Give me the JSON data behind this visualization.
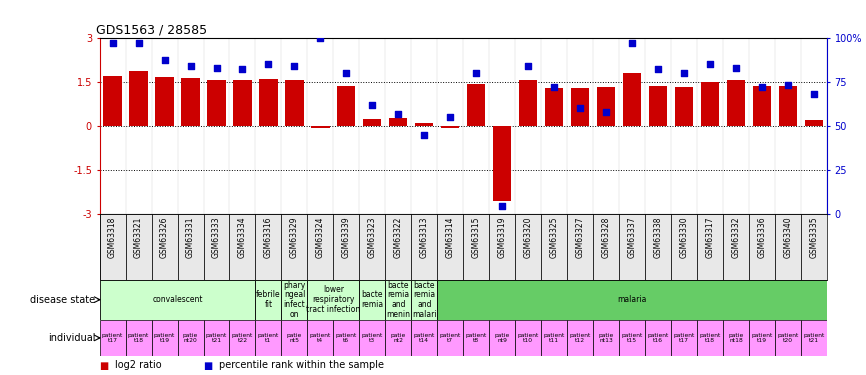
{
  "title": "GDS1563 / 28585",
  "samples": [
    "GSM63318",
    "GSM63321",
    "GSM63326",
    "GSM63331",
    "GSM63333",
    "GSM63334",
    "GSM63316",
    "GSM63329",
    "GSM63324",
    "GSM63339",
    "GSM63323",
    "GSM63322",
    "GSM63313",
    "GSM63314",
    "GSM63315",
    "GSM63319",
    "GSM63320",
    "GSM63325",
    "GSM63327",
    "GSM63328",
    "GSM63337",
    "GSM63338",
    "GSM63330",
    "GSM63317",
    "GSM63332",
    "GSM63336",
    "GSM63340",
    "GSM63335"
  ],
  "log2_ratio": [
    1.7,
    1.85,
    1.65,
    1.62,
    1.57,
    1.55,
    1.6,
    1.57,
    -0.08,
    1.35,
    0.22,
    0.27,
    0.1,
    -0.07,
    1.42,
    -2.55,
    1.55,
    1.28,
    1.3,
    1.32,
    1.78,
    1.35,
    1.32,
    1.48,
    1.55,
    1.35,
    1.35,
    0.2
  ],
  "percentile": [
    97,
    97,
    87,
    84,
    83,
    82,
    85,
    84,
    100,
    80,
    62,
    57,
    45,
    55,
    80,
    5,
    84,
    72,
    60,
    58,
    97,
    82,
    80,
    85,
    83,
    72,
    73,
    68
  ],
  "ylim": [
    -3,
    3
  ],
  "y2lim": [
    0,
    100
  ],
  "yticks": [
    -3,
    -1.5,
    0,
    1.5,
    3
  ],
  "y2ticks": [
    0,
    25,
    50,
    75,
    100
  ],
  "bar_color": "#CC0000",
  "dot_color": "#0000CC",
  "disease_state_groups": [
    {
      "label": "convalescent",
      "start": 0,
      "end": 6,
      "color": "#CCFFCC"
    },
    {
      "label": "febrile\nfit",
      "start": 6,
      "end": 7,
      "color": "#CCFFCC"
    },
    {
      "label": "phary\nngeal\ninfect\non",
      "start": 7,
      "end": 8,
      "color": "#CCFFCC"
    },
    {
      "label": "lower\nrespiratory\ntract infection",
      "start": 8,
      "end": 10,
      "color": "#CCFFCC"
    },
    {
      "label": "bacte\nremia",
      "start": 10,
      "end": 11,
      "color": "#CCFFCC"
    },
    {
      "label": "bacte\nremia\nand\nmenin",
      "start": 11,
      "end": 12,
      "color": "#CCFFCC"
    },
    {
      "label": "bacte\nremia\nand\nmalari",
      "start": 12,
      "end": 13,
      "color": "#CCFFCC"
    },
    {
      "label": "malaria",
      "start": 13,
      "end": 28,
      "color": "#66CC66"
    }
  ],
  "indiv_labels": [
    "patient\nt17",
    "patient\nt18",
    "patient\nt19",
    "patie\nnt20",
    "patient\nt21",
    "patient\nt22",
    "patient\nt1",
    "patie\nnt5",
    "patient\nt4",
    "patient\nt6",
    "patient\nt3",
    "patie\nnt2",
    "patient\nt14",
    "patient\nt7",
    "patient\nt8",
    "patie\nnt9",
    "patient\nt10",
    "patient\nt11",
    "patient\nt12",
    "patie\nnt13",
    "patient\nt15",
    "patient\nt16",
    "patient\nt17",
    "patient\nt18",
    "patie\nnt18",
    "patient\nt19",
    "patient\nt20",
    "patient\nt21"
  ],
  "individual_color": "#FF99FF",
  "legend_bar_label": "log2 ratio",
  "legend_dot_label": "percentile rank within the sample"
}
